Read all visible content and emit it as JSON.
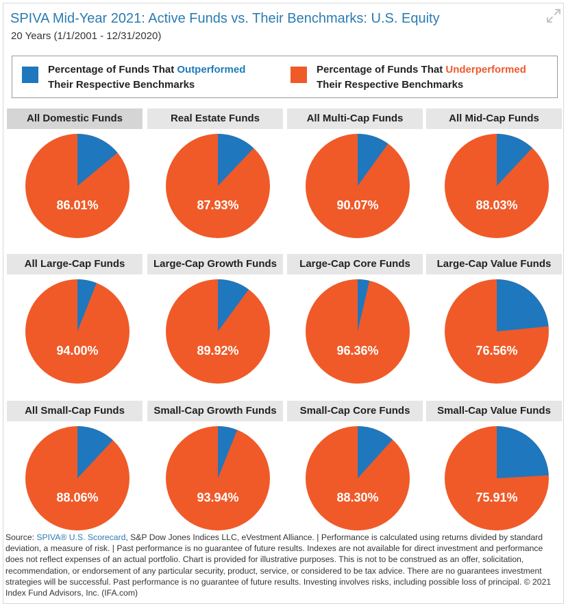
{
  "header": {
    "title": "SPIVA Mid-Year 2021: Active Funds vs. Their Benchmarks: U.S. Equity",
    "subtitle": "20 Years (1/1/2001 - 12/31/2020)"
  },
  "legend": {
    "outperformed": {
      "prefix": "Percentage of Funds That ",
      "highlight": "Outperformed",
      "line2": "Their Respective Benchmarks",
      "color": "#1f77bd"
    },
    "underperformed": {
      "prefix": "Percentage of Funds That ",
      "highlight": "Underperformed",
      "line2": "Their Respective Benchmarks",
      "color": "#f05a28"
    }
  },
  "chart_data": {
    "type": "pie",
    "title": "SPIVA Mid-Year 2021: Active Funds vs. Their Benchmarks: U.S. Equity",
    "series_names": [
      "Outperformed",
      "Underperformed"
    ],
    "colors": {
      "outperformed": "#1f77bd",
      "underperformed": "#f05a28"
    },
    "charts": [
      {
        "name": "All Domestic Funds",
        "underperformed": 86.01,
        "outperformed": 13.99,
        "label": "86.01%"
      },
      {
        "name": "Real Estate Funds",
        "underperformed": 87.93,
        "outperformed": 12.07,
        "label": "87.93%"
      },
      {
        "name": "All Multi-Cap Funds",
        "underperformed": 90.07,
        "outperformed": 9.93,
        "label": "90.07%"
      },
      {
        "name": "All Mid-Cap Funds",
        "underperformed": 88.03,
        "outperformed": 11.97,
        "label": "88.03%"
      },
      {
        "name": "All Large-Cap Funds",
        "underperformed": 94.0,
        "outperformed": 6.0,
        "label": "94.00%"
      },
      {
        "name": "Large-Cap Growth Funds",
        "underperformed": 89.92,
        "outperformed": 10.08,
        "label": "89.92%"
      },
      {
        "name": "Large-Cap Core Funds",
        "underperformed": 96.36,
        "outperformed": 3.64,
        "label": "96.36%"
      },
      {
        "name": "Large-Cap Value Funds",
        "underperformed": 76.56,
        "outperformed": 23.44,
        "label": "76.56%"
      },
      {
        "name": "All Small-Cap Funds",
        "underperformed": 88.06,
        "outperformed": 11.94,
        "label": "88.06%"
      },
      {
        "name": "Small-Cap Growth Funds",
        "underperformed": 93.94,
        "outperformed": 6.06,
        "label": "93.94%"
      },
      {
        "name": "Small-Cap Core Funds",
        "underperformed": 88.3,
        "outperformed": 11.7,
        "label": "88.30%"
      },
      {
        "name": "Small-Cap Value Funds",
        "underperformed": 75.91,
        "outperformed": 24.09,
        "label": "75.91%"
      }
    ]
  },
  "source": {
    "prefix": "Source: ",
    "link": "SPIVA® U.S. Scorecard",
    "text": ", S&P Dow Jones Indices LLC, eVestment Alliance. | Performance is calculated using returns divided by standard deviation, a measure of risk. | Past performance is no guarantee of future results. Indexes are not available for direct investment and performance does not reflect expenses of an actual portfolio. Chart is provided for illustrative purposes. This is not to be construed as an offer, solicitation, recommendation, or endorsement of any particular security, product, service, or considered to be tax advice. There are no guarantees investment strategies will be successful. Past performance is no guarantee of future results. Investing involves risks, including possible loss of principal. © 2021 Index Fund Advisors, Inc. (IFA.com)"
  }
}
